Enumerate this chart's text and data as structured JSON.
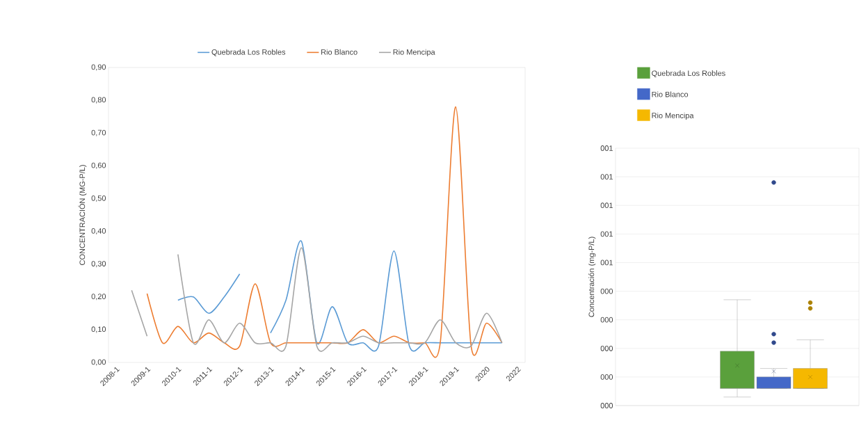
{
  "chart_data": [
    {
      "type": "line",
      "ylabel": "CONCENTRACIÓN (MG-P/L)",
      "categories": [
        "2008-1",
        null,
        "2009-1",
        null,
        "2010-1",
        null,
        "2011-1",
        null,
        "2012-1",
        null,
        "2013-1",
        null,
        "2014-1",
        null,
        "2015-1",
        null,
        "2016-1",
        null,
        "2017-1",
        null,
        "2018-1",
        null,
        "2019-1",
        null,
        "2020",
        null,
        "2022"
      ],
      "series": [
        {
          "name": "Quebrada Los Robles",
          "color": "#5b9bd5",
          "values": [
            null,
            null,
            null,
            null,
            0.19,
            0.2,
            0.15,
            0.2,
            0.27,
            null,
            0.09,
            0.19,
            0.37,
            0.06,
            0.17,
            0.06,
            0.06,
            0.05,
            0.34,
            0.05,
            0.06,
            0.06,
            0.06,
            0.06,
            0.06,
            0.06,
            null
          ]
        },
        {
          "name": "Rio Blanco",
          "color": "#ed7d31",
          "values": [
            null,
            null,
            0.21,
            0.06,
            0.11,
            0.06,
            0.09,
            0.06,
            0.05,
            0.24,
            0.06,
            0.06,
            0.06,
            0.06,
            0.06,
            0.06,
            0.1,
            0.06,
            0.08,
            0.06,
            0.06,
            0.06,
            0.78,
            0.05,
            0.12,
            0.06,
            null
          ]
        },
        {
          "name": "Rio Mencipa",
          "color": "#a5a5a5",
          "values": [
            null,
            0.22,
            0.08,
            null,
            0.33,
            0.06,
            0.13,
            0.06,
            0.12,
            0.06,
            0.06,
            0.05,
            0.35,
            0.05,
            0.06,
            0.06,
            0.08,
            0.06,
            0.06,
            0.06,
            0.06,
            0.13,
            0.06,
            0.05,
            0.15,
            0.06,
            null
          ]
        }
      ],
      "ylim": [
        0,
        0.9
      ],
      "yticks": [
        {
          "value": 0,
          "label": "0,00"
        },
        {
          "value": 0.1,
          "label": "0,10"
        },
        {
          "value": 0.2,
          "label": "0,20"
        },
        {
          "value": 0.3,
          "label": "0,30"
        },
        {
          "value": 0.4,
          "label": "0,40"
        },
        {
          "value": 0.5,
          "label": "0,50"
        },
        {
          "value": 0.6,
          "label": "0,60"
        },
        {
          "value": 0.7,
          "label": "0,70"
        },
        {
          "value": 0.8,
          "label": "0,80"
        },
        {
          "value": 0.9,
          "label": "0,90"
        }
      ],
      "legend": "top"
    },
    {
      "type": "box",
      "ylabel": "Concentración (mg-P/L)",
      "categories": [
        null
      ],
      "series": [
        {
          "name": "Quebrada Los Robles",
          "color": "#5aa03c",
          "boxes": [
            {
              "low": 0.03,
              "q1": 0.06,
              "median": 0.06,
              "q3": 0.19,
              "high": 0.37,
              "mean": 0.14
            }
          ]
        },
        {
          "name": "Rio Blanco",
          "color": "#4468c8",
          "boxes": [
            {
              "low": 0.06,
              "q1": 0.06,
              "median": 0.06,
              "q3": 0.1,
              "high": 0.13,
              "mean": 0.12,
              "outliers": [
                0.78,
                0.25,
                0.22
              ]
            }
          ]
        },
        {
          "name": "Rio Mencipa",
          "color": "#f5b800",
          "boxes": [
            {
              "low": 0.06,
              "q1": 0.06,
              "median": 0.06,
              "q3": 0.13,
              "high": 0.23,
              "mean": 0.1,
              "outliers": [
                0.36,
                0.34
              ]
            }
          ]
        }
      ],
      "ylim": [
        0,
        0.9
      ],
      "yticks": [
        {
          "value": 0,
          "label": "000"
        },
        {
          "value": 0.1,
          "label": "000"
        },
        {
          "value": 0.2,
          "label": "000"
        },
        {
          "value": 0.3,
          "label": "000"
        },
        {
          "value": 0.4,
          "label": "000"
        },
        {
          "value": 0.5,
          "label": "001"
        },
        {
          "value": 0.6,
          "label": "001"
        },
        {
          "value": 0.7,
          "label": "001"
        },
        {
          "value": 0.8,
          "label": "001"
        },
        {
          "value": 0.9,
          "label": "001"
        }
      ],
      "grid": "y",
      "legend": "top left",
      "tick_labels": "y"
    }
  ]
}
